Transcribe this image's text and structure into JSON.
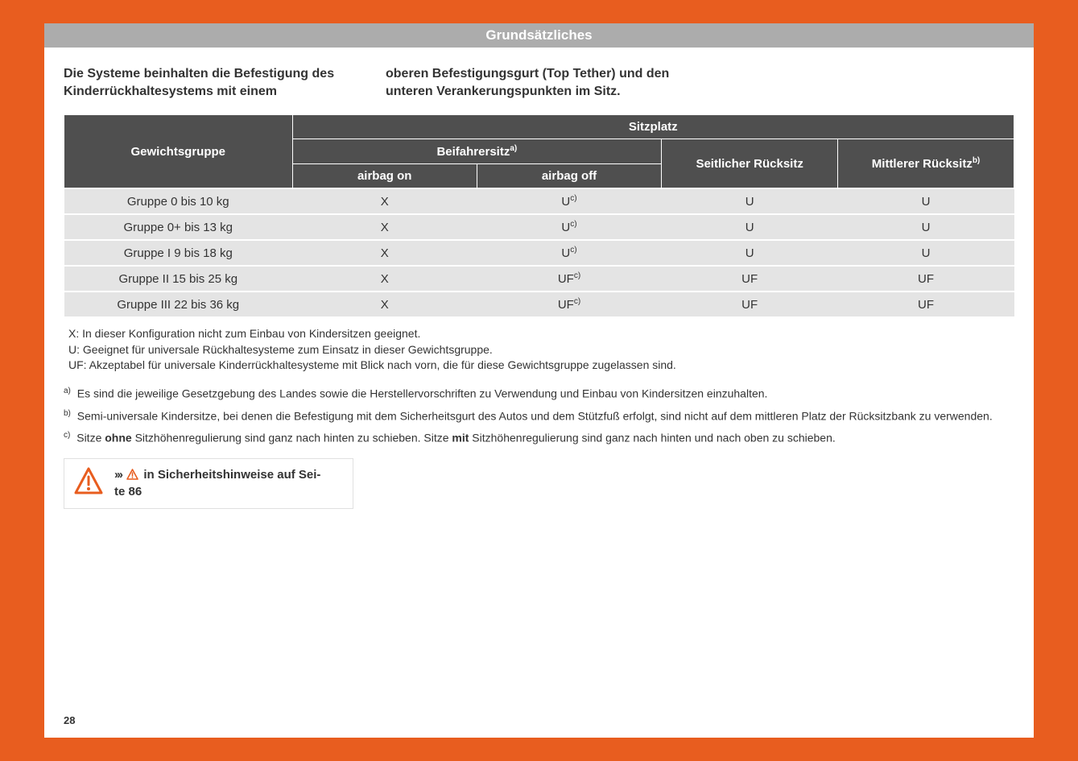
{
  "colors": {
    "page_bg": "#e85d1f",
    "paper_bg": "#ffffff",
    "header_bg": "#acacac",
    "header_text": "#ffffff",
    "th_bg": "#4f4f4f",
    "td_bg": "#e4e4e4",
    "text": "#333333",
    "warn": "#e85d1f",
    "box_border": "#e0e0e0"
  },
  "header": {
    "title": "Grundsätzliches"
  },
  "intro": {
    "col1": "Die Systeme beinhalten die Befestigung des Kinderrückhaltesystems mit einem",
    "col2": "oberen Befestigungsgurt (Top Tether) und den unteren Verankerungspunkten im Sitz."
  },
  "table": {
    "h_weight": "Gewichtsgruppe",
    "h_seat": "Sitzplatz",
    "h_front": "Beifahrersitz",
    "h_front_sup": "a)",
    "h_side": "Seitlicher Rücksitz",
    "h_middle": "Mittlerer Rücksitz",
    "h_middle_sup": "b)",
    "h_airbag_on": "airbag on",
    "h_airbag_off": "airbag off",
    "rows": [
      {
        "label": "Gruppe 0 bis 10 kg",
        "on": "X",
        "off": "U",
        "off_sup": "c)",
        "side": "U",
        "mid": "U"
      },
      {
        "label": "Gruppe 0+ bis 13 kg",
        "on": "X",
        "off": "U",
        "off_sup": "c)",
        "side": "U",
        "mid": "U"
      },
      {
        "label": "Gruppe I 9 bis 18 kg",
        "on": "X",
        "off": "U",
        "off_sup": "c)",
        "side": "U",
        "mid": "U"
      },
      {
        "label": "Gruppe II 15 bis 25 kg",
        "on": "X",
        "off": "UF",
        "off_sup": "c)",
        "side": "UF",
        "mid": "UF"
      },
      {
        "label": "Gruppe III 22 bis 36 kg",
        "on": "X",
        "off": "UF",
        "off_sup": "c)",
        "side": "UF",
        "mid": "UF"
      }
    ]
  },
  "legend": {
    "x": "X: In dieser Konfiguration nicht zum Einbau von Kindersitzen geeignet.",
    "u": "U: Geeignet für universale Rückhaltesysteme zum Einsatz in dieser Gewichtsgruppe.",
    "uf": "UF: Akzeptabel für universale Kinderrückhaltesysteme mit Blick nach vorn, die für diese Gewichtsgruppe zugelassen sind."
  },
  "footnotes": {
    "a_sup": "a)",
    "a": " Es sind die jeweilige Gesetzgebung des Landes sowie die Herstellervorschriften zu Verwendung und Einbau von Kindersitzen einzuhalten.",
    "b_sup": "b)",
    "b": " Semi-universale Kindersitze, bei denen die Befestigung mit dem Sicherheitsgurt des Autos und dem Stützfuß erfolgt, sind nicht auf dem mittleren Platz der Rücksitzbank zu verwenden.",
    "c_sup": "c)",
    "c_pre": " Sitze ",
    "c_bold1": "ohne",
    "c_mid": " Sitzhöhenregulierung sind ganz nach hinten zu schieben. Sitze ",
    "c_bold2": "mit",
    "c_post": " Sitzhöhenregulierung sind ganz nach hinten und nach oben zu schieben."
  },
  "warning": {
    "chev": "›››",
    "text1": " in Sicherheitshinweise auf Sei-",
    "text2": "te 86"
  },
  "page_number": "28"
}
